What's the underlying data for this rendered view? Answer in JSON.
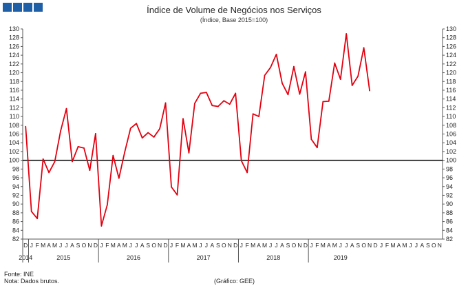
{
  "logo": {
    "squares": 4,
    "color": "#1f5fa8"
  },
  "chart_data": {
    "type": "line",
    "title": "Índice de Volume de Negócios nos Serviços",
    "subtitle": "(Índice, Base 2015=100)",
    "ylim": [
      82,
      130
    ],
    "y_ticks": [
      82,
      84,
      86,
      88,
      90,
      92,
      94,
      96,
      98,
      100,
      102,
      104,
      106,
      108,
      110,
      112,
      114,
      116,
      118,
      120,
      122,
      124,
      126,
      128,
      130
    ],
    "reference_line": 100,
    "x_month_labels": [
      "D",
      "J",
      "F",
      "M",
      "A",
      "M",
      "J",
      "J",
      "A",
      "S",
      "O",
      "N",
      "D",
      "J",
      "F",
      "M",
      "A",
      "M",
      "J",
      "J",
      "A",
      "S",
      "O",
      "N",
      "D",
      "J",
      "F",
      "M",
      "A",
      "M",
      "J",
      "J",
      "A",
      "S",
      "O",
      "N",
      "D",
      "J",
      "F",
      "M",
      "A",
      "M",
      "J",
      "J",
      "A",
      "S",
      "O",
      "N",
      "D",
      "J",
      "F",
      "M",
      "A",
      "M",
      "J",
      "J",
      "A",
      "S",
      "O",
      "N",
      "D",
      "J",
      "F",
      "M",
      "A",
      "M",
      "J",
      "J",
      "A",
      "S",
      "O",
      "N"
    ],
    "year_groups": [
      {
        "label": "2014",
        "start": 0,
        "end": 0
      },
      {
        "label": "2015",
        "start": 1,
        "end": 12
      },
      {
        "label": "2016",
        "start": 13,
        "end": 24
      },
      {
        "label": "2017",
        "start": 25,
        "end": 36
      },
      {
        "label": "2018",
        "start": 37,
        "end": 48
      },
      {
        "label": "2019",
        "start": 49,
        "end": 59
      }
    ],
    "series": [
      {
        "color": "#e3000f",
        "values": [
          107.7,
          88.3,
          86.7,
          100.3,
          97.2,
          99.7,
          106.7,
          111.8,
          99.7,
          103.1,
          102.8,
          97.7,
          106.1,
          85.0,
          89.8,
          101.1,
          95.9,
          101.9,
          107.3,
          108.4,
          105.1,
          106.3,
          105.3,
          107.2,
          113.1,
          93.9,
          92.1,
          109.5,
          101.7,
          113.0,
          115.3,
          115.5,
          112.5,
          112.3,
          113.6,
          112.8,
          115.3,
          99.9,
          97.2,
          110.6,
          110.0,
          119.4,
          121.2,
          124.2,
          117.6,
          115.0,
          121.4,
          115.1,
          120.2,
          104.8,
          102.9,
          113.4,
          113.5,
          122.2,
          118.5,
          128.9,
          117.1,
          119.2,
          125.7,
          115.9
        ]
      }
    ],
    "grid": false,
    "legend": "none"
  },
  "footer": {
    "source": "Fonte: INE",
    "note": "Nota: Dados brutos.",
    "credit": "(Gráfico: GEE)"
  }
}
